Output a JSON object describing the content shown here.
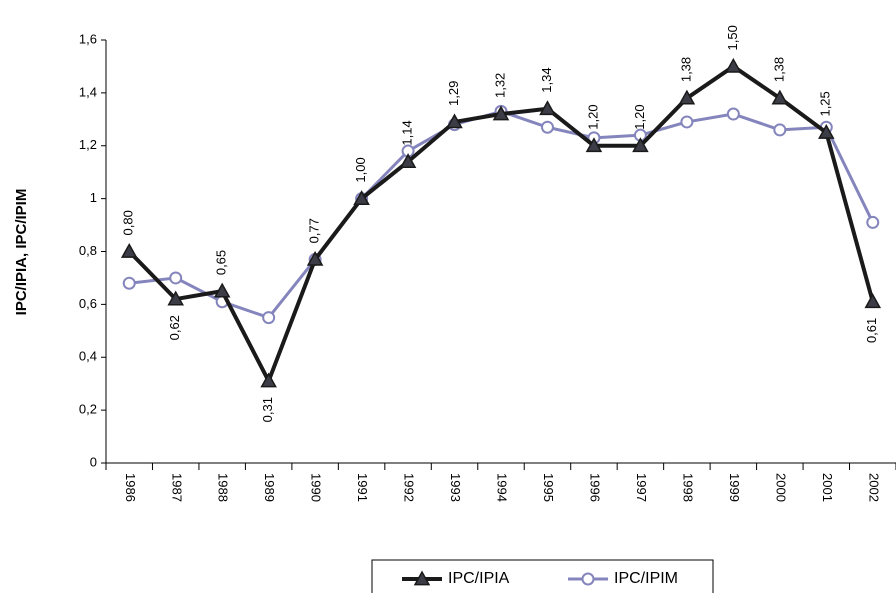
{
  "chart_data": {
    "type": "line",
    "y_label": "IPC/IPIA, IPC/IPIM",
    "categories": [
      "1986",
      "1987",
      "1988",
      "1989",
      "1990",
      "1991",
      "1992",
      "1993",
      "1994",
      "1995",
      "1996",
      "1997",
      "1998",
      "1999",
      "2000",
      "2001",
      "2002"
    ],
    "series": [
      {
        "name": "IPC/IPIA",
        "color": "#1a1a1a",
        "marker": "triangle",
        "values": [
          0.8,
          0.62,
          0.65,
          0.31,
          0.77,
          1.0,
          1.14,
          1.29,
          1.32,
          1.34,
          1.2,
          1.2,
          1.38,
          1.5,
          1.38,
          1.25,
          0.61
        ],
        "value_labels": [
          "0,80",
          "0,62",
          "0,65",
          "0,31",
          "0,77",
          "1,00",
          "1,14",
          "1,29",
          "1,32",
          "1,34",
          "1,20",
          "1,20",
          "1,38",
          "1,50",
          "1,38",
          "1,25",
          "0,61"
        ]
      },
      {
        "name": "IPC/IPIM",
        "color": "#8585bd",
        "marker": "circle",
        "values": [
          0.68,
          0.7,
          0.61,
          0.55,
          0.77,
          1.0,
          1.18,
          1.28,
          1.33,
          1.27,
          1.23,
          1.24,
          1.29,
          1.32,
          1.26,
          1.27,
          0.91
        ]
      }
    ],
    "ylim": [
      0,
      1.6
    ],
    "yticks": [
      0,
      {
        "value": 0.2,
        "label": "0,2"
      },
      {
        "value": 0.4,
        "label": "0,4"
      },
      {
        "value": 0.6,
        "label": "0,6"
      },
      {
        "value": 0.8,
        "label": "0,8"
      },
      1,
      {
        "value": 1.2,
        "label": "1,2"
      },
      {
        "value": 1.4,
        "label": "1,4"
      },
      {
        "value": 1.6,
        "label": "1,6"
      }
    ],
    "legend": "bottom"
  }
}
